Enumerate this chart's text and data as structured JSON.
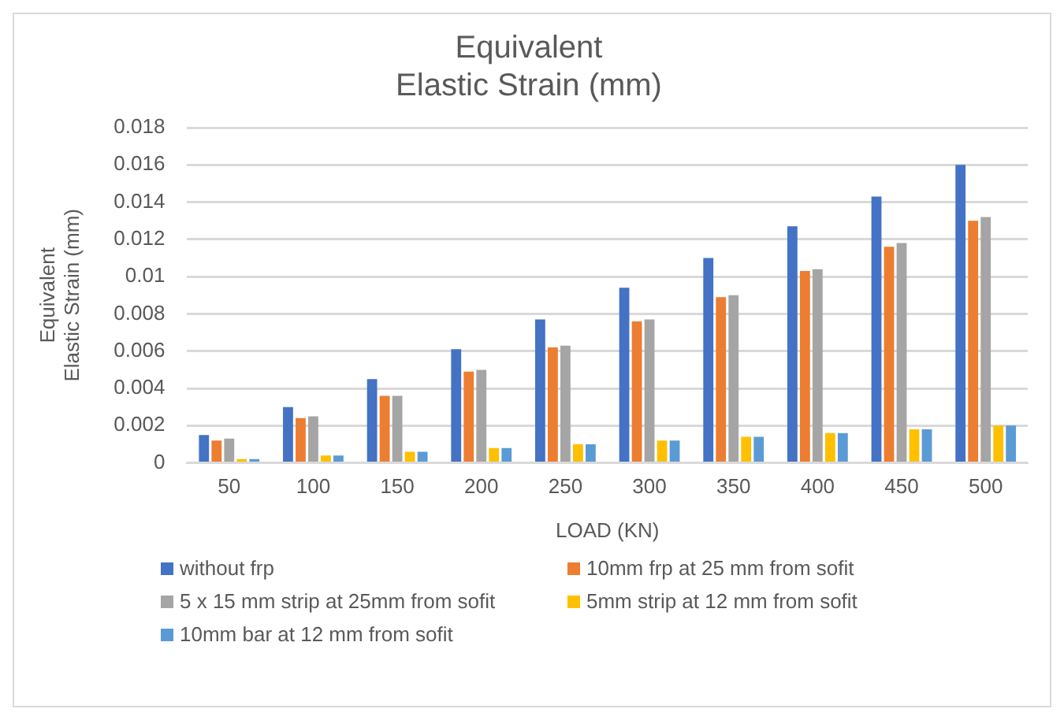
{
  "chart_data": {
    "type": "bar",
    "title": "Equivalent\nElastic Strain (mm)",
    "xlabel": "LOAD (KN)",
    "ylabel": "Equivalent\nElastic Strain (mm)",
    "categories": [
      "50",
      "100",
      "150",
      "200",
      "250",
      "300",
      "350",
      "400",
      "450",
      "500"
    ],
    "series": [
      {
        "name": "without frp",
        "color": "#4472c4",
        "values": [
          0.0015,
          0.003,
          0.0045,
          0.0061,
          0.0077,
          0.0094,
          0.011,
          0.0127,
          0.0143,
          0.016
        ]
      },
      {
        "name": "10mm frp at 25 mm from sofit",
        "color": "#ed7d31",
        "values": [
          0.0012,
          0.0024,
          0.0036,
          0.0049,
          0.0062,
          0.0076,
          0.0089,
          0.0103,
          0.0116,
          0.013
        ]
      },
      {
        "name": "5 x 15 mm strip at 25mm from sofit",
        "color": "#a5a5a5",
        "values": [
          0.0013,
          0.0025,
          0.0036,
          0.005,
          0.0063,
          0.0077,
          0.009,
          0.0104,
          0.0118,
          0.0132
        ]
      },
      {
        "name": "5mm strip at 12 mm from sofit",
        "color": "#ffc000",
        "values": [
          0.0002,
          0.0004,
          0.0006,
          0.0008,
          0.001,
          0.0012,
          0.0014,
          0.0016,
          0.0018,
          0.002
        ]
      },
      {
        "name": "10mm bar at 12 mm from sofit",
        "color": "#5b9bd5",
        "values": [
          0.0002,
          0.0004,
          0.0006,
          0.0008,
          0.001,
          0.0012,
          0.0014,
          0.0016,
          0.0018,
          0.002
        ]
      }
    ],
    "ylim": [
      0,
      0.018
    ],
    "yticks": [
      0,
      0.002,
      0.004,
      0.006,
      0.008,
      0.01,
      0.012,
      0.014,
      0.016,
      0.018
    ],
    "grid": "y",
    "legend": "bottom"
  }
}
